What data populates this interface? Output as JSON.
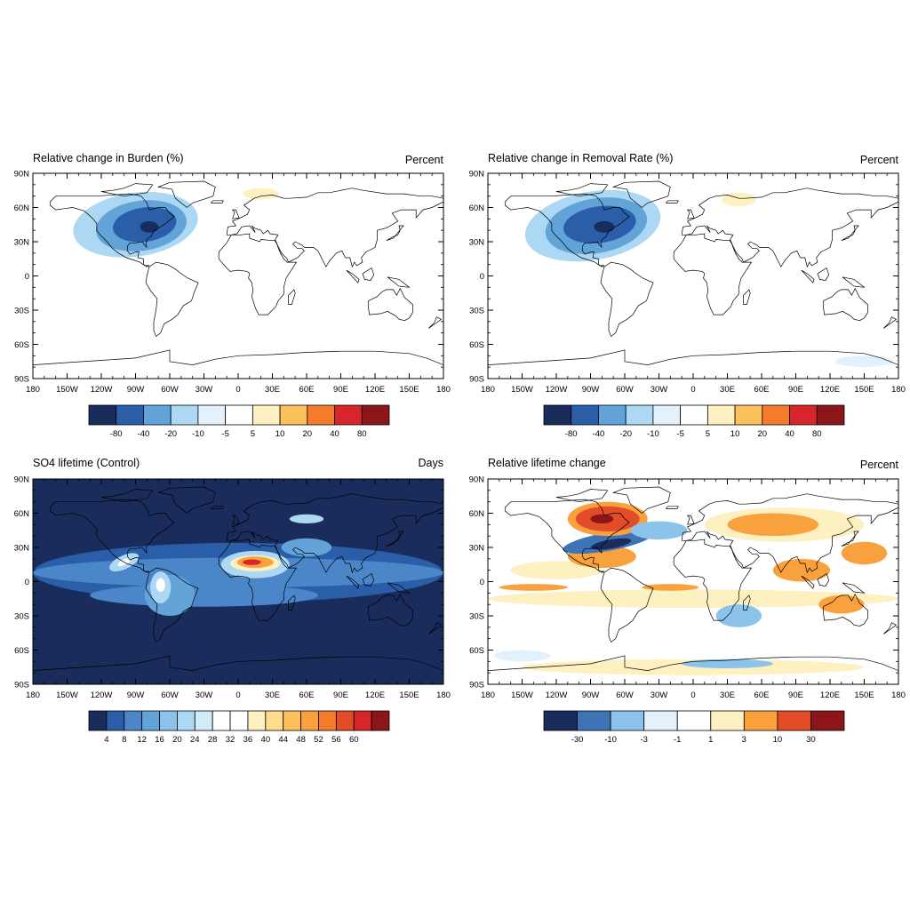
{
  "axes": {
    "lat_ticks": [
      "90N",
      "60N",
      "30N",
      "0",
      "30S",
      "60S",
      "90S"
    ],
    "lon_ticks": [
      "180",
      "150W",
      "120W",
      "90W",
      "60W",
      "30W",
      "0",
      "30E",
      "60E",
      "90E",
      "120E",
      "150E",
      "180"
    ]
  },
  "panels": [
    {
      "title": "Relative change in Burden (%)",
      "units": "Percent",
      "background": "#ffffff",
      "colorbar": {
        "colors": [
          "#1a2c5b",
          "#2a5ea8",
          "#62a3d8",
          "#acd8f3",
          "#e2f1fb",
          "#ffffff",
          "#fdf0c1",
          "#fcc15b",
          "#f47c2c",
          "#d6262c",
          "#8c1519"
        ],
        "labels": [
          "-80",
          "-40",
          "-20",
          "-10",
          "-5",
          "5",
          "10",
          "20",
          "40",
          "80"
        ]
      },
      "features": [
        {
          "lon": -90,
          "lat": 45,
          "rx": 55,
          "ry": 28,
          "color": "#acd8f3",
          "angle": -8
        },
        {
          "lon": -85,
          "lat": 44,
          "rx": 40,
          "ry": 22,
          "color": "#62a3d8",
          "angle": -8
        },
        {
          "lon": -82,
          "lat": 45,
          "rx": 28,
          "ry": 15,
          "color": "#2a5ea8",
          "angle": -8
        },
        {
          "lon": -78,
          "lat": 43,
          "rx": 8,
          "ry": 5,
          "color": "#1a2c5b",
          "angle": 0
        },
        {
          "lon": 20,
          "lat": 72,
          "rx": 16,
          "ry": 5,
          "color": "#fdf0c1",
          "angle": 0
        }
      ]
    },
    {
      "title": "Relative change in Removal Rate (%)",
      "units": "Percent",
      "background": "#ffffff",
      "colorbar": {
        "colors": [
          "#1a2c5b",
          "#2a5ea8",
          "#62a3d8",
          "#acd8f3",
          "#e2f1fb",
          "#ffffff",
          "#fdf0c1",
          "#fcc15b",
          "#f47c2c",
          "#d6262c",
          "#8c1519"
        ],
        "labels": [
          "-80",
          "-40",
          "-20",
          "-10",
          "-5",
          "5",
          "10",
          "20",
          "40",
          "80"
        ]
      },
      "features": [
        {
          "lon": -88,
          "lat": 44,
          "rx": 60,
          "ry": 30,
          "color": "#acd8f3",
          "angle": -10
        },
        {
          "lon": -85,
          "lat": 44,
          "rx": 45,
          "ry": 24,
          "color": "#62a3d8",
          "angle": -10
        },
        {
          "lon": -82,
          "lat": 45,
          "rx": 32,
          "ry": 16,
          "color": "#2a5ea8",
          "angle": -8
        },
        {
          "lon": -78,
          "lat": 43,
          "rx": 9,
          "ry": 5,
          "color": "#1a2c5b",
          "angle": 0
        },
        {
          "lon": 40,
          "lat": 67,
          "rx": 15,
          "ry": 6,
          "color": "#fdf0c1",
          "angle": 0
        },
        {
          "lon": 150,
          "lat": -75,
          "rx": 25,
          "ry": 5,
          "color": "#e2f1fb",
          "angle": 0
        }
      ]
    },
    {
      "title": "SO4 lifetime (Control)",
      "units": "Days",
      "background": "#1a2c5b",
      "colorbar": {
        "colors": [
          "#1a2c5b",
          "#2a5ea8",
          "#4b86c8",
          "#62a3d8",
          "#8cc3eb",
          "#acd8f3",
          "#d2ebf8",
          "#ffffff",
          "#ffffff",
          "#fdf0c1",
          "#fddc8b",
          "#fcc15b",
          "#f9a23d",
          "#f47c2c",
          "#e34c29",
          "#d6262c",
          "#8c1519"
        ],
        "labels": [
          "4",
          "8",
          "12",
          "16",
          "20",
          "24",
          "28",
          "32",
          "36",
          "40",
          "44",
          "48",
          "52",
          "56",
          "60"
        ]
      },
      "features": [
        {
          "lon": 0,
          "lat": 8,
          "rx": 180,
          "ry": 26,
          "color": "#2a5ea8",
          "angle": 0
        },
        {
          "lon": 0,
          "lat": 8,
          "rx": 180,
          "ry": 13,
          "color": "#4b86c8",
          "angle": 0
        },
        {
          "lon": -30,
          "lat": -12,
          "rx": 100,
          "ry": 10,
          "color": "#4b86c8",
          "angle": 0
        },
        {
          "lon": -60,
          "lat": -12,
          "rx": 22,
          "ry": 18,
          "color": "#62a3d8",
          "angle": 0
        },
        {
          "lon": -68,
          "lat": -5,
          "rx": 9,
          "ry": 14,
          "color": "#acd8f3",
          "angle": 0
        },
        {
          "lon": -68,
          "lat": -3,
          "rx": 4,
          "ry": 6,
          "color": "#ffffff",
          "angle": 0
        },
        {
          "lon": -100,
          "lat": 17,
          "rx": 14,
          "ry": 6,
          "color": "#acd8f3",
          "angle": -25
        },
        {
          "lon": -100,
          "lat": 17,
          "rx": 6,
          "ry": 2.5,
          "color": "#ffffff",
          "angle": -25
        },
        {
          "lon": 15,
          "lat": 15,
          "rx": 30,
          "ry": 12,
          "color": "#acd8f3",
          "angle": 0
        },
        {
          "lon": 15,
          "lat": 16,
          "rx": 22,
          "ry": 7,
          "color": "#fdf0c1",
          "angle": 0
        },
        {
          "lon": 15,
          "lat": 17,
          "rx": 16,
          "ry": 5,
          "color": "#f9a23d",
          "angle": 0
        },
        {
          "lon": 12,
          "lat": 17,
          "rx": 8,
          "ry": 2.5,
          "color": "#d6262c",
          "angle": 0
        },
        {
          "lon": 60,
          "lat": 30,
          "rx": 22,
          "ry": 8,
          "color": "#62a3d8",
          "angle": 0
        },
        {
          "lon": 60,
          "lat": 55,
          "rx": 15,
          "ry": 4,
          "color": "#acd8f3",
          "angle": 0
        }
      ]
    },
    {
      "title": "Relative lifetime change",
      "units": "Percent",
      "background": "#ffffff",
      "colorbar": {
        "colors": [
          "#1a2c5b",
          "#3d74b6",
          "#8cc3eb",
          "#e2f1fb",
          "#ffffff",
          "#fdf0c1",
          "#f9a23d",
          "#e34c29",
          "#8c1519"
        ],
        "labels": [
          "-30",
          "-10",
          "-3",
          "-1",
          "1",
          "3",
          "10",
          "30"
        ]
      },
      "features": [
        {
          "lon": 0,
          "lat": -15,
          "rx": 180,
          "ry": 8,
          "color": "#fdf0c1",
          "angle": 0
        },
        {
          "lon": -120,
          "lat": 10,
          "rx": 40,
          "ry": 8,
          "color": "#fdf0c1",
          "angle": 0
        },
        {
          "lon": -140,
          "lat": -5,
          "rx": 30,
          "ry": 3,
          "color": "#f9a23d",
          "angle": 0
        },
        {
          "lon": -20,
          "lat": -5,
          "rx": 25,
          "ry": 3,
          "color": "#f9a23d",
          "angle": 0
        },
        {
          "lon": 80,
          "lat": 50,
          "rx": 70,
          "ry": 15,
          "color": "#fdf0c1",
          "angle": 0
        },
        {
          "lon": 70,
          "lat": 50,
          "rx": 40,
          "ry": 10,
          "color": "#f9a23d",
          "angle": 0
        },
        {
          "lon": 150,
          "lat": 25,
          "rx": 20,
          "ry": 10,
          "color": "#f9a23d",
          "angle": 0
        },
        {
          "lon": 95,
          "lat": 10,
          "rx": 25,
          "ry": 10,
          "color": "#f9a23d",
          "angle": 0
        },
        {
          "lon": 130,
          "lat": -20,
          "rx": 20,
          "ry": 8,
          "color": "#f9a23d",
          "angle": 0
        },
        {
          "lon": 40,
          "lat": -30,
          "rx": 20,
          "ry": 10,
          "color": "#8cc3eb",
          "angle": 0
        },
        {
          "lon": 0,
          "lat": -75,
          "rx": 150,
          "ry": 7,
          "color": "#fdf0c1",
          "angle": 0
        },
        {
          "lon": 30,
          "lat": -72,
          "rx": 40,
          "ry": 4,
          "color": "#8cc3eb",
          "angle": 0
        },
        {
          "lon": -150,
          "lat": -65,
          "rx": 25,
          "ry": 5,
          "color": "#e2f1fb",
          "angle": 0
        },
        {
          "lon": -80,
          "lat": 22,
          "rx": 30,
          "ry": 10,
          "color": "#f9a23d",
          "angle": 0
        },
        {
          "lon": -75,
          "lat": 35,
          "rx": 40,
          "ry": 8,
          "color": "#3d74b6",
          "angle": -10
        },
        {
          "lon": -72,
          "lat": 33,
          "rx": 18,
          "ry": 4,
          "color": "#1a2c5b",
          "angle": -10
        },
        {
          "lon": -75,
          "lat": 55,
          "rx": 35,
          "ry": 15,
          "color": "#f9a23d",
          "angle": 0
        },
        {
          "lon": -75,
          "lat": 55,
          "rx": 28,
          "ry": 11,
          "color": "#e34c29",
          "angle": 0
        },
        {
          "lon": -80,
          "lat": 55,
          "rx": 10,
          "ry": 4,
          "color": "#8c1519",
          "angle": 0
        },
        {
          "lon": -30,
          "lat": 45,
          "rx": 25,
          "ry": 8,
          "color": "#8cc3eb",
          "angle": 0
        }
      ]
    }
  ]
}
